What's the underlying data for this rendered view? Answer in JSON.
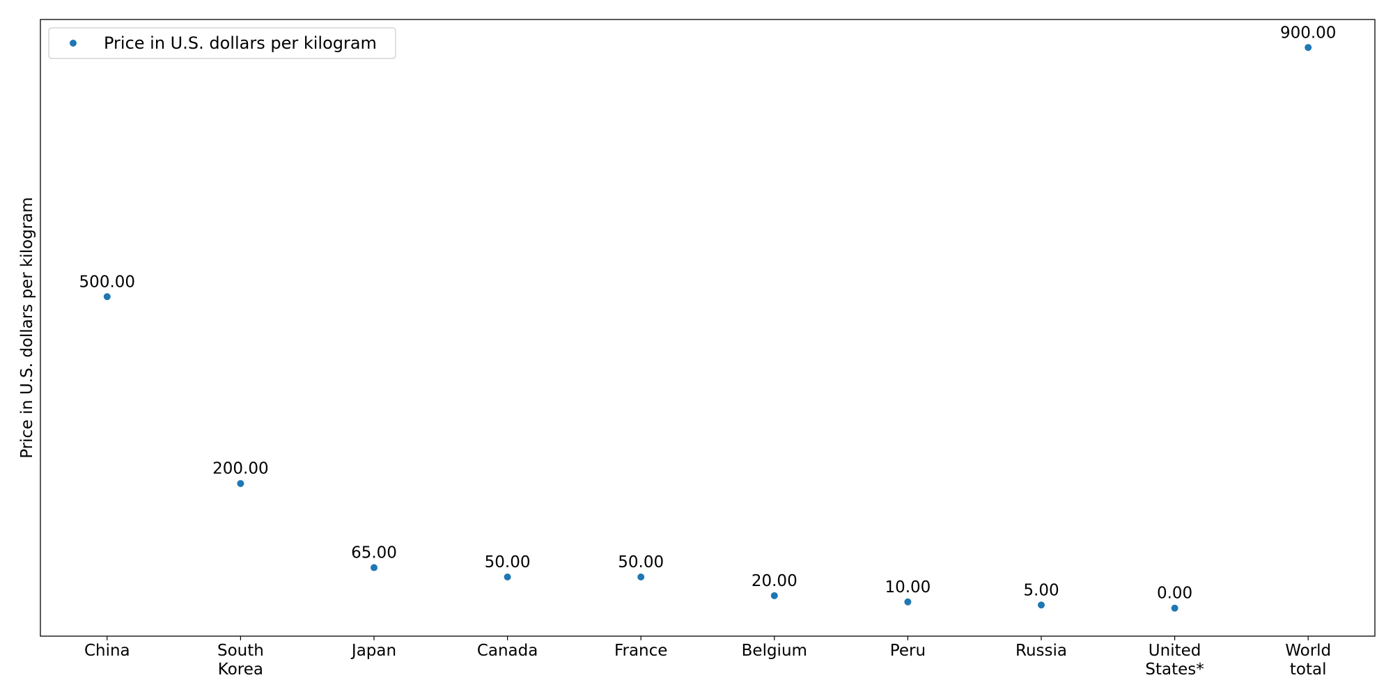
{
  "chart_data": {
    "type": "scatter",
    "categories": [
      [
        "China"
      ],
      [
        "South",
        "Korea"
      ],
      [
        "Japan"
      ],
      [
        "Canada"
      ],
      [
        "France"
      ],
      [
        "Belgium"
      ],
      [
        "Peru"
      ],
      [
        "Russia"
      ],
      [
        "United",
        "States*"
      ],
      [
        "World",
        "total"
      ]
    ],
    "series": [
      {
        "name": "Price in U.S. dollars per kilogram",
        "color": "#1f77b4",
        "values": [
          500,
          200,
          65,
          50,
          50,
          20,
          10,
          5,
          0,
          900
        ],
        "labels": [
          "500.00",
          "200.00",
          "65.00",
          "50.00",
          "50.00",
          "20.00",
          "10.00",
          "5.00",
          "0.00",
          "900.00"
        ]
      }
    ],
    "ylabel": "Price in U.S. dollars per kilogram",
    "xlabel": "",
    "ylim": [
      -45,
      945
    ],
    "y_ticks_shown": false,
    "grid": false,
    "legend": "upper-left"
  }
}
